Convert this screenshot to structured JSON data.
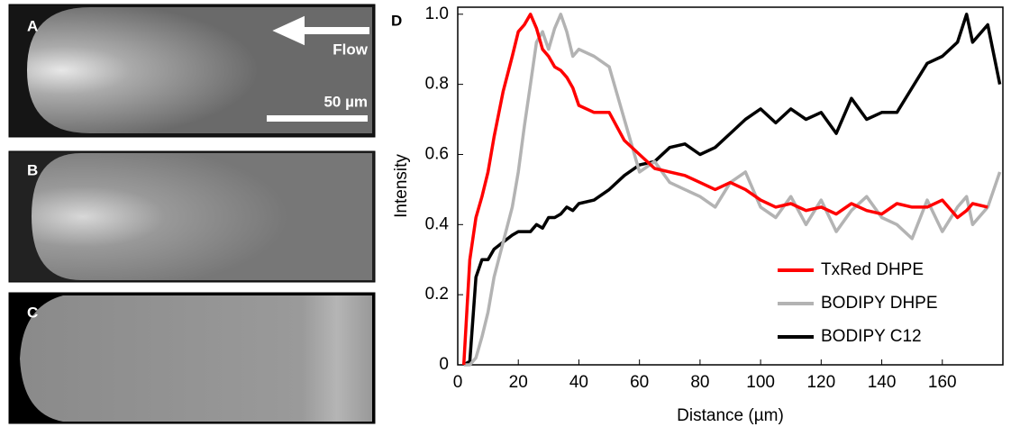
{
  "panels": [
    {
      "label": "A",
      "flow": "Flow",
      "scale": "50 µm"
    },
    {
      "label": "B"
    },
    {
      "label": "C"
    }
  ],
  "chart_data": {
    "type": "line",
    "panel_label": "D",
    "x_label": "Distance (µm)",
    "y_label": "Intensity",
    "x": [
      2,
      4,
      6,
      8,
      10,
      12,
      15,
      18,
      20,
      22,
      24,
      26,
      28,
      30,
      32,
      34,
      36,
      38,
      40,
      45,
      50,
      55,
      60,
      65,
      70,
      75,
      80,
      85,
      90,
      95,
      100,
      105,
      110,
      115,
      120,
      125,
      130,
      135,
      140,
      145,
      150,
      155,
      160,
      165,
      168,
      170,
      175,
      179
    ],
    "series": [
      {
        "name": "TxRed DHPE",
        "color": "#ff0000",
        "values": [
          0,
          0.3,
          0.42,
          0.48,
          0.55,
          0.65,
          0.78,
          0.88,
          0.95,
          0.97,
          1.0,
          0.96,
          0.9,
          0.88,
          0.85,
          0.84,
          0.82,
          0.79,
          0.74,
          0.72,
          0.72,
          0.64,
          0.6,
          0.56,
          0.55,
          0.54,
          0.52,
          0.5,
          0.52,
          0.5,
          0.47,
          0.45,
          0.46,
          0.44,
          0.45,
          0.43,
          0.46,
          0.44,
          0.43,
          0.46,
          0.45,
          0.45,
          0.47,
          0.42,
          0.44,
          0.46,
          0.45,
          null
        ]
      },
      {
        "name": "BODIPY DHPE",
        "color": "#b3b3b3",
        "values": [
          0,
          0,
          0.02,
          0.08,
          0.15,
          0.25,
          0.35,
          0.45,
          0.55,
          0.68,
          0.8,
          0.92,
          0.95,
          0.9,
          0.96,
          1.0,
          0.95,
          0.88,
          0.9,
          0.88,
          0.85,
          0.7,
          0.55,
          0.58,
          0.52,
          0.5,
          0.48,
          0.45,
          0.52,
          0.55,
          0.45,
          0.42,
          0.48,
          0.4,
          0.47,
          0.38,
          0.44,
          0.48,
          0.42,
          0.4,
          0.36,
          0.47,
          0.38,
          0.45,
          0.48,
          0.4,
          0.45,
          0.55
        ]
      },
      {
        "name": "BODIPY C12",
        "color": "#000000",
        "values": [
          0,
          0.01,
          0.25,
          0.3,
          0.3,
          0.33,
          0.35,
          0.37,
          0.38,
          0.38,
          0.38,
          0.4,
          0.39,
          0.42,
          0.42,
          0.43,
          0.45,
          0.44,
          0.46,
          0.47,
          0.5,
          0.54,
          0.57,
          0.58,
          0.62,
          0.63,
          0.6,
          0.62,
          0.66,
          0.7,
          0.73,
          0.69,
          0.73,
          0.7,
          0.72,
          0.66,
          0.76,
          0.7,
          0.72,
          0.72,
          0.79,
          0.86,
          0.88,
          0.92,
          1.0,
          0.92,
          0.97,
          0.8
        ]
      }
    ],
    "xlim": [
      0,
      180
    ],
    "xticks": [
      0,
      20,
      40,
      60,
      80,
      100,
      120,
      140,
      160
    ],
    "ylim": [
      0,
      1.02
    ],
    "yticks": [
      0,
      0.2,
      0.4,
      0.6,
      0.8,
      {
        "value": 1,
        "label": "1.0"
      }
    ],
    "legend": "lower right"
  }
}
